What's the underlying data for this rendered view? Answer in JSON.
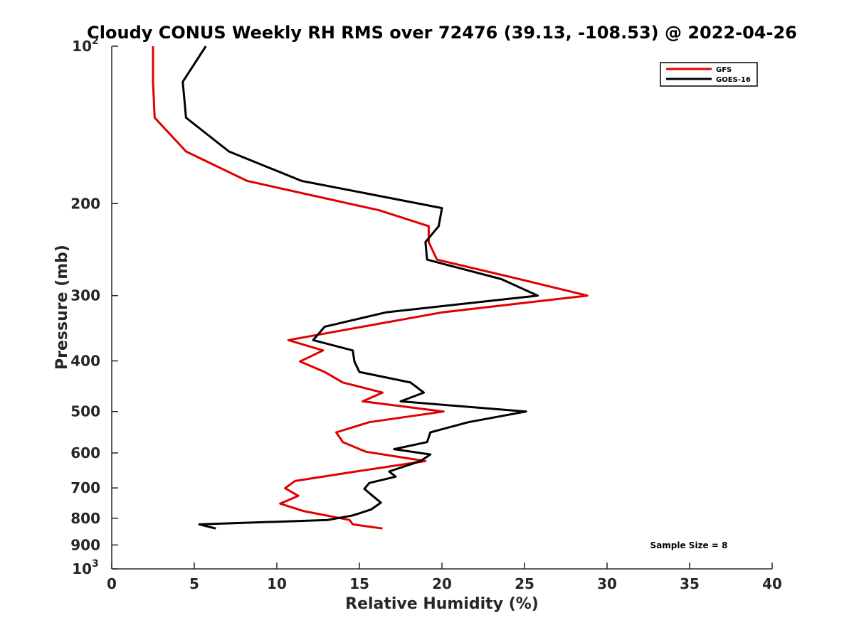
{
  "chart_data": {
    "type": "line",
    "title": "Cloudy CONUS Weekly RH RMS over 72476 (39.13, -108.53) @ 2022-04-26",
    "xlabel": "Relative Humidity (%)",
    "ylabel": "Pressure (mb)",
    "xlim": [
      0,
      40
    ],
    "ylim": [
      100,
      1000
    ],
    "y_scale": "log",
    "y_reversed": true,
    "grid": false,
    "legend_position": "top-right",
    "x_ticks": [
      "0",
      "5",
      "10",
      "15",
      "20",
      "25",
      "30",
      "35",
      "40"
    ],
    "y_ticks": [
      {
        "value": 100,
        "label": "10",
        "exp": "2"
      },
      {
        "value": 200,
        "label": "200",
        "exp": ""
      },
      {
        "value": 300,
        "label": "300",
        "exp": ""
      },
      {
        "value": 400,
        "label": "400",
        "exp": ""
      },
      {
        "value": 500,
        "label": "500",
        "exp": ""
      },
      {
        "value": 600,
        "label": "600",
        "exp": ""
      },
      {
        "value": 700,
        "label": "700",
        "exp": ""
      },
      {
        "value": 800,
        "label": "800",
        "exp": ""
      },
      {
        "value": 900,
        "label": "900",
        "exp": ""
      },
      {
        "value": 1000,
        "label": "10",
        "exp": "3"
      }
    ],
    "annotation": "Sample Size = 8",
    "series": [
      {
        "name": "GFS",
        "color": "#e00000",
        "points": [
          [
            2.5,
            100
          ],
          [
            2.5,
            117
          ],
          [
            2.6,
            137
          ],
          [
            4.5,
            159
          ],
          [
            8.2,
            181
          ],
          [
            16.2,
            206
          ],
          [
            19.2,
            221
          ],
          [
            19.2,
            237
          ],
          [
            19.7,
            256
          ],
          [
            24.7,
            279
          ],
          [
            28.8,
            300
          ],
          [
            20.0,
            323
          ],
          [
            15.2,
            344
          ],
          [
            10.7,
            365
          ],
          [
            12.8,
            382
          ],
          [
            11.4,
            401
          ],
          [
            12.9,
            420
          ],
          [
            14.0,
            440
          ],
          [
            16.4,
            460
          ],
          [
            15.2,
            478
          ],
          [
            20.1,
            500
          ],
          [
            15.6,
            524
          ],
          [
            13.6,
            548
          ],
          [
            14.0,
            572
          ],
          [
            15.4,
            597
          ],
          [
            19.0,
            622
          ],
          [
            14.8,
            651
          ],
          [
            11.1,
            679
          ],
          [
            10.5,
            701
          ],
          [
            11.3,
            725
          ],
          [
            10.2,
            750
          ],
          [
            11.6,
            775
          ],
          [
            14.4,
            806
          ],
          [
            14.6,
            822
          ],
          [
            16.4,
            837
          ]
        ]
      },
      {
        "name": "GOES-16",
        "color": "#000000",
        "points": [
          [
            5.7,
            100
          ],
          [
            4.3,
            117
          ],
          [
            4.5,
            137
          ],
          [
            7.1,
            159
          ],
          [
            11.5,
            181
          ],
          [
            20.0,
            204
          ],
          [
            19.8,
            221
          ],
          [
            19.0,
            237
          ],
          [
            19.1,
            256
          ],
          [
            23.6,
            279
          ],
          [
            25.8,
            300
          ],
          [
            16.6,
            323
          ],
          [
            12.9,
            344
          ],
          [
            12.2,
            365
          ],
          [
            14.6,
            382
          ],
          [
            14.7,
            401
          ],
          [
            15.0,
            420
          ],
          [
            18.1,
            440
          ],
          [
            18.9,
            460
          ],
          [
            17.5,
            478
          ],
          [
            25.1,
            500
          ],
          [
            21.6,
            524
          ],
          [
            19.3,
            548
          ],
          [
            19.1,
            572
          ],
          [
            17.1,
            590
          ],
          [
            19.3,
            604
          ],
          [
            18.7,
            622
          ],
          [
            16.8,
            651
          ],
          [
            17.2,
            666
          ],
          [
            15.6,
            685
          ],
          [
            15.3,
            703
          ],
          [
            15.8,
            725
          ],
          [
            16.3,
            747
          ],
          [
            15.7,
            770
          ],
          [
            14.6,
            790
          ],
          [
            13.1,
            806
          ],
          [
            5.3,
            822
          ],
          [
            6.3,
            837
          ]
        ]
      }
    ]
  }
}
